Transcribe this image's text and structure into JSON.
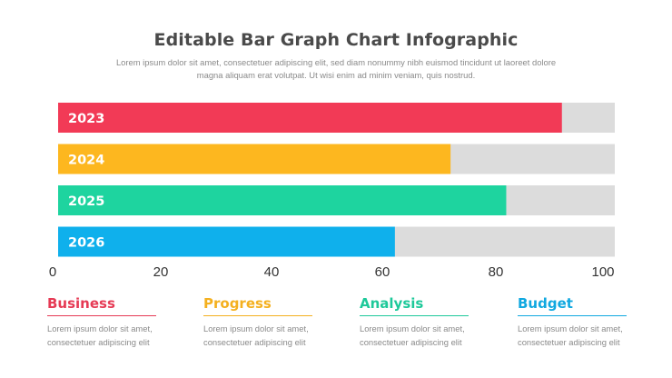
{
  "header": {
    "title": "Editable Bar Graph Chart Infographic",
    "subtitle": "Lorem ipsum dolor sit amet, consectetuer adipiscing elit, sed diam nonummy nibh euismod tincidunt ut laoreet dolore magna aliquam erat volutpat. Ut wisi enim ad minim veniam, quis nostrud."
  },
  "chart_data": {
    "type": "bar",
    "orientation": "horizontal",
    "categories": [
      "2023",
      "2024",
      "2025",
      "2026"
    ],
    "values": [
      90.5,
      70.5,
      80.5,
      60.5
    ],
    "colors": [
      "#f23a56",
      "#fdb71f",
      "#1ed49f",
      "#0fb0ec"
    ],
    "track_color": "#dcdcdc",
    "xlim": [
      0,
      100
    ],
    "xticks": [
      "0",
      "20",
      "40",
      "60",
      "80",
      "100"
    ],
    "grid": false,
    "legend": "none"
  },
  "cards": [
    {
      "title": "Business",
      "color": "#e63b55",
      "text": "Lorem ipsum dolor sit amet, consectetuer adipiscing elit"
    },
    {
      "title": "Progress",
      "color": "#f4b01f",
      "text": "Lorem ipsum dolor sit amet, consectetuer adipiscing elit"
    },
    {
      "title": "Analysis",
      "color": "#1ec99a",
      "text": "Lorem ipsum dolor sit amet, consectetuer adipiscing elit"
    },
    {
      "title": "Budget",
      "color": "#10a8e0",
      "text": "Lorem ipsum dolor sit amet, consectetuer adipiscing elit"
    }
  ]
}
